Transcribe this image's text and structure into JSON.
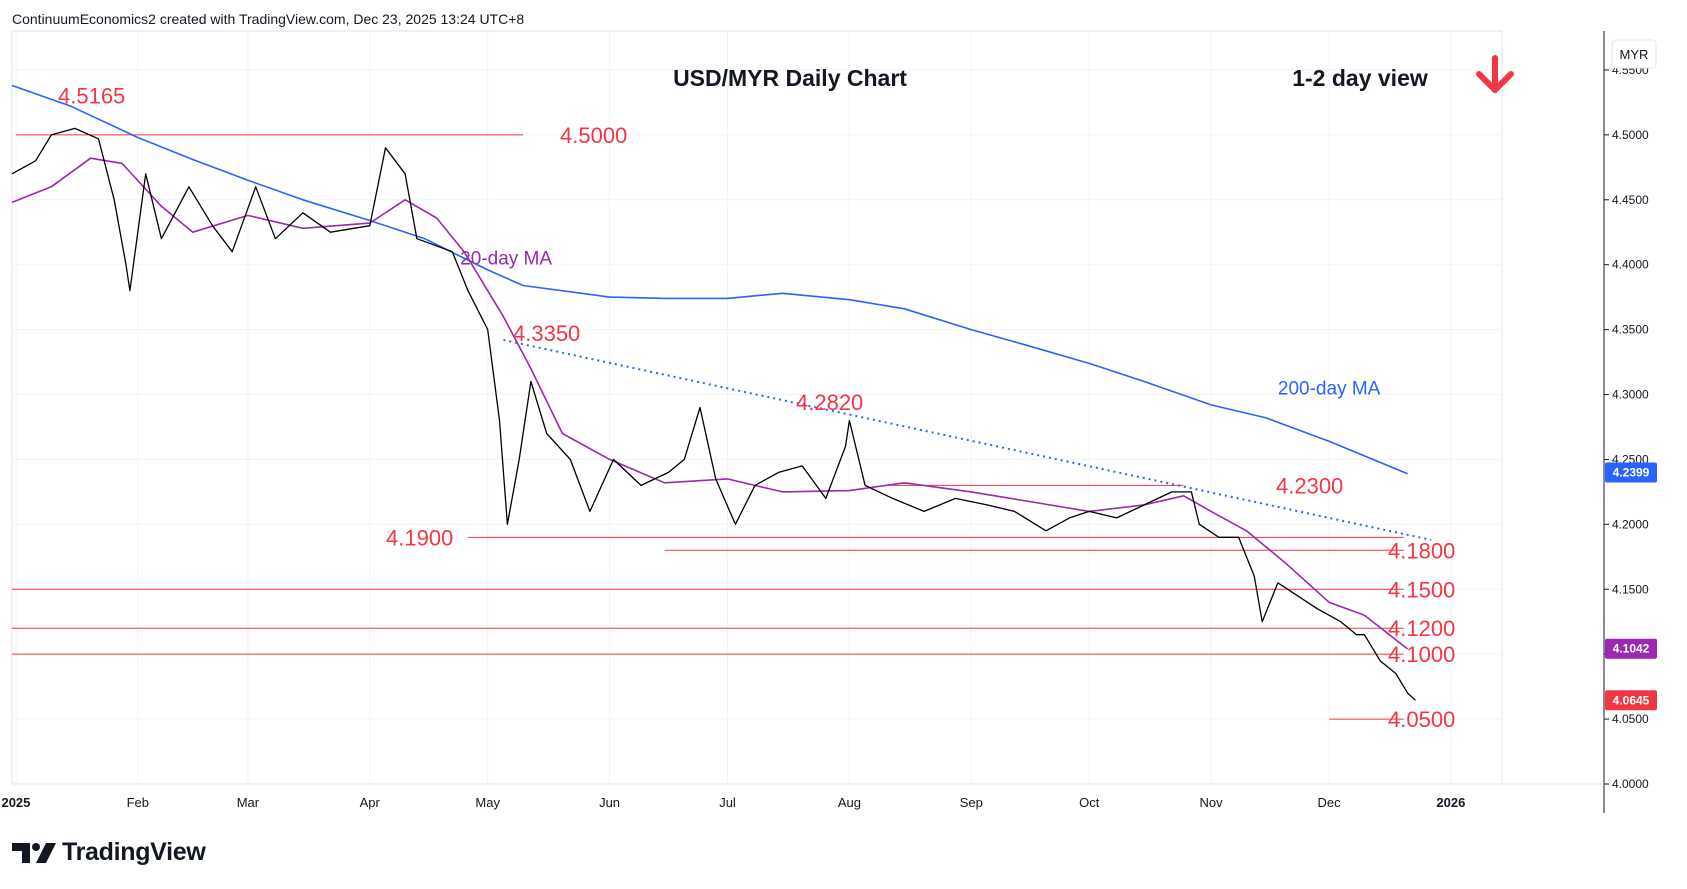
{
  "header": {
    "attribution": "ContinuumEconomics2 created with TradingView.com, Dec 23, 2025 13:24 UTC+8"
  },
  "footer": {
    "brand": "TradingView"
  },
  "chart_data": {
    "type": "candlestick",
    "title": "USD/MYR Daily Chart",
    "subtitle": "1-2 day view",
    "direction_icon": "down-arrow-icon",
    "currency_label": "MYR",
    "ylim": [
      4.0,
      4.58
    ],
    "x_range": [
      "2024-12-31",
      "2026-01-14"
    ],
    "y_ticks": [
      "4.0000",
      "4.0500",
      "4.1000",
      "4.1500",
      "4.2000",
      "4.2500",
      "4.3000",
      "4.3500",
      "4.4000",
      "4.4500",
      "4.5000",
      "4.5500"
    ],
    "x_ticks": [
      {
        "date": "2025-01-01",
        "label": "2025"
      },
      {
        "date": "2025-02-01",
        "label": "Feb"
      },
      {
        "date": "2025-03-01",
        "label": "Mar"
      },
      {
        "date": "2025-04-01",
        "label": "Apr"
      },
      {
        "date": "2025-05-01",
        "label": "May"
      },
      {
        "date": "2025-06-01",
        "label": "Jun"
      },
      {
        "date": "2025-07-01",
        "label": "Jul"
      },
      {
        "date": "2025-08-01",
        "label": "Aug"
      },
      {
        "date": "2025-09-01",
        "label": "Sep"
      },
      {
        "date": "2025-10-01",
        "label": "Oct"
      },
      {
        "date": "2025-11-01",
        "label": "Nov"
      },
      {
        "date": "2025-12-01",
        "label": "Dec"
      },
      {
        "date": "2026-01-01",
        "label": "2026"
      }
    ],
    "price_badges": [
      {
        "label": "4.2399",
        "value": 4.2399,
        "color": "#2962ff"
      },
      {
        "label": "4.1042",
        "value": 4.1042,
        "color": "#9c27b0"
      },
      {
        "label": "4.0645",
        "value": 4.0645,
        "color": "#f23645"
      }
    ],
    "levels": [
      {
        "label": "4.5165",
        "value": 4.5165,
        "line": false
      },
      {
        "label": "4.5000",
        "value": 4.5,
        "line": true,
        "start": "2025-01-01",
        "end": "2025-05-10"
      },
      {
        "label": "4.3350",
        "value": 4.335,
        "line": false
      },
      {
        "label": "4.2820",
        "value": 4.282,
        "line": false
      },
      {
        "label": "4.2300",
        "value": 4.23,
        "line": true,
        "start": "2025-08-10",
        "end": "2025-10-25"
      },
      {
        "label": "4.1900",
        "value": 4.19,
        "line": true,
        "start": "2025-04-26",
        "end": "2025-12-20"
      },
      {
        "label": "4.1800",
        "value": 4.18,
        "line": true,
        "start": "2025-06-15",
        "end": "2025-12-20"
      },
      {
        "label": "4.1500",
        "value": 4.15,
        "line": true,
        "start": "2024-12-31",
        "end": "2025-12-20"
      },
      {
        "label": "4.1200",
        "value": 4.12,
        "line": true,
        "start": "2024-12-31",
        "end": "2025-12-20"
      },
      {
        "label": "4.1000",
        "value": 4.1,
        "line": true,
        "start": "2024-12-31",
        "end": "2025-12-20"
      },
      {
        "label": "4.0500",
        "value": 4.05,
        "line": true,
        "start": "2025-12-01",
        "end": "2025-12-20"
      }
    ],
    "trendline": {
      "start": {
        "date": "2025-05-05",
        "value": 4.342
      },
      "end": {
        "date": "2025-12-27",
        "value": 4.188
      }
    },
    "series": [
      {
        "name": "200-day MA",
        "color": "#2962ff",
        "points": [
          [
            "2024-12-31",
            4.538
          ],
          [
            "2025-01-15",
            4.522
          ],
          [
            "2025-02-01",
            4.498
          ],
          [
            "2025-02-15",
            4.481
          ],
          [
            "2025-03-01",
            4.465
          ],
          [
            "2025-03-15",
            4.45
          ],
          [
            "2025-04-01",
            4.434
          ],
          [
            "2025-04-15",
            4.42
          ],
          [
            "2025-05-01",
            4.396
          ],
          [
            "2025-05-10",
            4.384
          ],
          [
            "2025-06-01",
            4.375
          ],
          [
            "2025-06-15",
            4.374
          ],
          [
            "2025-07-01",
            4.374
          ],
          [
            "2025-07-15",
            4.378
          ],
          [
            "2025-08-01",
            4.373
          ],
          [
            "2025-08-15",
            4.366
          ],
          [
            "2025-09-01",
            4.35
          ],
          [
            "2025-09-15",
            4.338
          ],
          [
            "2025-10-01",
            4.324
          ],
          [
            "2025-10-15",
            4.31
          ],
          [
            "2025-11-01",
            4.292
          ],
          [
            "2025-11-15",
            4.282
          ],
          [
            "2025-12-01",
            4.264
          ],
          [
            "2025-12-21",
            4.239
          ]
        ]
      },
      {
        "name": "20-day MA",
        "color": "#9c27b0",
        "points": [
          [
            "2024-12-31",
            4.448
          ],
          [
            "2025-01-10",
            4.46
          ],
          [
            "2025-01-20",
            4.482
          ],
          [
            "2025-01-28",
            4.478
          ],
          [
            "2025-02-07",
            4.445
          ],
          [
            "2025-02-15",
            4.425
          ],
          [
            "2025-03-01",
            4.438
          ],
          [
            "2025-03-15",
            4.428
          ],
          [
            "2025-04-01",
            4.432
          ],
          [
            "2025-04-10",
            4.45
          ],
          [
            "2025-04-18",
            4.436
          ],
          [
            "2025-04-25",
            4.41
          ],
          [
            "2025-05-05",
            4.36
          ],
          [
            "2025-05-12",
            4.32
          ],
          [
            "2025-05-20",
            4.27
          ],
          [
            "2025-06-01",
            4.25
          ],
          [
            "2025-06-15",
            4.232
          ],
          [
            "2025-07-01",
            4.235
          ],
          [
            "2025-07-15",
            4.225
          ],
          [
            "2025-08-01",
            4.226
          ],
          [
            "2025-08-15",
            4.232
          ],
          [
            "2025-09-01",
            4.225
          ],
          [
            "2025-09-15",
            4.218
          ],
          [
            "2025-10-01",
            4.21
          ],
          [
            "2025-10-15",
            4.215
          ],
          [
            "2025-10-25",
            4.222
          ],
          [
            "2025-11-01",
            4.21
          ],
          [
            "2025-11-10",
            4.195
          ],
          [
            "2025-11-20",
            4.17
          ],
          [
            "2025-12-01",
            4.14
          ],
          [
            "2025-12-10",
            4.13
          ],
          [
            "2025-12-21",
            4.104
          ]
        ]
      },
      {
        "name": "USD/MYR",
        "color": "#000000",
        "points": [
          [
            "2024-12-31",
            4.47
          ],
          [
            "2025-01-06",
            4.48
          ],
          [
            "2025-01-10",
            4.5
          ],
          [
            "2025-01-16",
            4.505
          ],
          [
            "2025-01-22",
            4.497
          ],
          [
            "2025-01-26",
            4.45
          ],
          [
            "2025-01-29",
            4.4
          ],
          [
            "2025-01-30",
            4.38
          ],
          [
            "2025-02-03",
            4.47
          ],
          [
            "2025-02-07",
            4.42
          ],
          [
            "2025-02-14",
            4.46
          ],
          [
            "2025-02-20",
            4.43
          ],
          [
            "2025-02-25",
            4.41
          ],
          [
            "2025-03-03",
            4.46
          ],
          [
            "2025-03-08",
            4.42
          ],
          [
            "2025-03-15",
            4.44
          ],
          [
            "2025-03-22",
            4.425
          ],
          [
            "2025-04-01",
            4.43
          ],
          [
            "2025-04-05",
            4.49
          ],
          [
            "2025-04-10",
            4.47
          ],
          [
            "2025-04-13",
            4.42
          ],
          [
            "2025-04-22",
            4.41
          ],
          [
            "2025-04-26",
            4.38
          ],
          [
            "2025-05-01",
            4.35
          ],
          [
            "2025-05-04",
            4.28
          ],
          [
            "2025-05-06",
            4.2
          ],
          [
            "2025-05-09",
            4.25
          ],
          [
            "2025-05-12",
            4.31
          ],
          [
            "2025-05-16",
            4.27
          ],
          [
            "2025-05-22",
            4.25
          ],
          [
            "2025-05-27",
            4.21
          ],
          [
            "2025-06-02",
            4.25
          ],
          [
            "2025-06-09",
            4.23
          ],
          [
            "2025-06-16",
            4.24
          ],
          [
            "2025-06-20",
            4.25
          ],
          [
            "2025-06-24",
            4.29
          ],
          [
            "2025-06-28",
            4.235
          ],
          [
            "2025-07-03",
            4.2
          ],
          [
            "2025-07-08",
            4.23
          ],
          [
            "2025-07-14",
            4.24
          ],
          [
            "2025-07-20",
            4.245
          ],
          [
            "2025-07-26",
            4.22
          ],
          [
            "2025-07-31",
            4.26
          ],
          [
            "2025-08-01",
            4.28
          ],
          [
            "2025-08-05",
            4.23
          ],
          [
            "2025-08-12",
            4.22
          ],
          [
            "2025-08-20",
            4.21
          ],
          [
            "2025-08-28",
            4.22
          ],
          [
            "2025-09-05",
            4.215
          ],
          [
            "2025-09-12",
            4.21
          ],
          [
            "2025-09-20",
            4.195
          ],
          [
            "2025-09-26",
            4.205
          ],
          [
            "2025-10-01",
            4.21
          ],
          [
            "2025-10-08",
            4.205
          ],
          [
            "2025-10-15",
            4.215
          ],
          [
            "2025-10-22",
            4.225
          ],
          [
            "2025-10-27",
            4.225
          ],
          [
            "2025-10-29",
            4.2
          ],
          [
            "2025-11-03",
            4.19
          ],
          [
            "2025-11-08",
            4.19
          ],
          [
            "2025-11-12",
            4.16
          ],
          [
            "2025-11-14",
            4.125
          ],
          [
            "2025-11-18",
            4.155
          ],
          [
            "2025-11-23",
            4.145
          ],
          [
            "2025-11-28",
            4.135
          ],
          [
            "2025-12-04",
            4.125
          ],
          [
            "2025-12-08",
            4.115
          ],
          [
            "2025-12-10",
            4.115
          ],
          [
            "2025-12-14",
            4.095
          ],
          [
            "2025-12-18",
            4.085
          ],
          [
            "2025-12-21",
            4.07
          ],
          [
            "2025-12-23",
            4.0645
          ]
        ]
      }
    ],
    "annotations": [
      {
        "label": "20-day MA",
        "color": "#9c27b0",
        "date": "2025-04-24",
        "value": 4.4
      },
      {
        "label": "200-day MA",
        "color": "#2962ff",
        "date": "2025-11-18",
        "value": 4.3
      }
    ]
  }
}
